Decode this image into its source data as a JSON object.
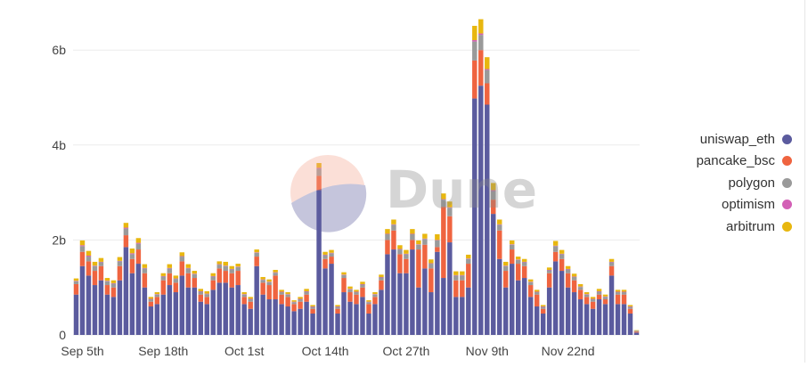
{
  "colors": {
    "uniswap_eth": "#5b5b9e",
    "pancake_bsc": "#ef6440",
    "polygon": "#9a9a9a",
    "optimism": "#d360b6",
    "arbitrum": "#e8b70f",
    "grid": "#ececec",
    "axis_text": "#444444"
  },
  "watermark": {
    "text": "Dune",
    "icon": "dune-logo-icon"
  },
  "chart_data": {
    "type": "bar",
    "stacked": true,
    "xlabel": "",
    "ylabel": "",
    "ylim": [
      0,
      6.8
    ],
    "y_ticks": [
      {
        "value": 0,
        "label": "0"
      },
      {
        "value": 2,
        "label": "2b"
      },
      {
        "value": 4,
        "label": "4b"
      },
      {
        "value": 6,
        "label": "6b"
      }
    ],
    "x_ticks": [
      {
        "index": 1,
        "label": "Sep 5th"
      },
      {
        "index": 14,
        "label": "Sep 18th"
      },
      {
        "index": 27,
        "label": "Oct 1st"
      },
      {
        "index": 40,
        "label": "Oct 14th"
      },
      {
        "index": 53,
        "label": "Oct 27th"
      },
      {
        "index": 66,
        "label": "Nov 9th"
      },
      {
        "index": 79,
        "label": "Nov 22nd"
      }
    ],
    "legend_position": "right",
    "categories": [
      "Sep 4",
      "Sep 5",
      "Sep 6",
      "Sep 7",
      "Sep 8",
      "Sep 9",
      "Sep 10",
      "Sep 11",
      "Sep 12",
      "Sep 13",
      "Sep 14",
      "Sep 15",
      "Sep 16",
      "Sep 17",
      "Sep 18",
      "Sep 19",
      "Sep 20",
      "Sep 21",
      "Sep 22",
      "Sep 23",
      "Sep 24",
      "Sep 25",
      "Sep 26",
      "Sep 27",
      "Sep 28",
      "Sep 29",
      "Sep 30",
      "Oct 1",
      "Oct 2",
      "Oct 3",
      "Oct 4",
      "Oct 5",
      "Oct 6",
      "Oct 7",
      "Oct 8",
      "Oct 9",
      "Oct 10",
      "Oct 11",
      "Oct 12",
      "Oct 13",
      "Oct 14",
      "Oct 15",
      "Oct 16",
      "Oct 17",
      "Oct 18",
      "Oct 19",
      "Oct 20",
      "Oct 21",
      "Oct 22",
      "Oct 23",
      "Oct 24",
      "Oct 25",
      "Oct 26",
      "Oct 27",
      "Oct 28",
      "Oct 29",
      "Oct 30",
      "Oct 31",
      "Nov 1",
      "Nov 2",
      "Nov 3",
      "Nov 4",
      "Nov 5",
      "Nov 6",
      "Nov 7",
      "Nov 8",
      "Nov 9",
      "Nov 10",
      "Nov 11",
      "Nov 12",
      "Nov 13",
      "Nov 14",
      "Nov 15",
      "Nov 16",
      "Nov 17",
      "Nov 18",
      "Nov 19",
      "Nov 20",
      "Nov 21",
      "Nov 22",
      "Nov 23",
      "Nov 24",
      "Nov 25",
      "Nov 26",
      "Nov 27",
      "Nov 28",
      "Nov 29",
      "Nov 30",
      "Dec 1",
      "Dec 2",
      "Dec 3"
    ],
    "series": [
      {
        "name": "uniswap_eth",
        "values": [
          0.85,
          1.45,
          1.25,
          1.05,
          1.15,
          0.85,
          0.8,
          1.15,
          1.85,
          1.3,
          1.5,
          1.0,
          0.6,
          0.65,
          0.85,
          1.05,
          0.9,
          1.25,
          1.0,
          1.0,
          0.7,
          0.65,
          0.95,
          1.1,
          1.1,
          1.0,
          1.05,
          0.65,
          0.55,
          1.45,
          0.85,
          0.75,
          0.75,
          0.65,
          0.6,
          0.5,
          0.55,
          0.7,
          0.45,
          3.05,
          1.4,
          1.5,
          0.45,
          0.9,
          0.7,
          0.65,
          0.8,
          0.45,
          0.65,
          0.95,
          1.7,
          1.8,
          1.3,
          1.3,
          1.8,
          1.0,
          1.4,
          0.9,
          1.75,
          1.2,
          1.95,
          0.8,
          0.8,
          1.0,
          4.98,
          5.25,
          4.85,
          2.55,
          1.6,
          1.0,
          1.5,
          1.15,
          1.2,
          0.8,
          0.6,
          0.45,
          1.0,
          1.55,
          1.35,
          1.0,
          0.9,
          0.75,
          0.65,
          0.55,
          0.75,
          0.65,
          1.25,
          0.65,
          0.65,
          0.45,
          0.05
        ]
      },
      {
        "name": "pancake_bsc",
        "values": [
          0.22,
          0.3,
          0.3,
          0.3,
          0.3,
          0.2,
          0.2,
          0.3,
          0.25,
          0.3,
          0.3,
          0.3,
          0.1,
          0.15,
          0.3,
          0.25,
          0.2,
          0.3,
          0.3,
          0.2,
          0.15,
          0.15,
          0.2,
          0.3,
          0.25,
          0.3,
          0.3,
          0.15,
          0.15,
          0.2,
          0.25,
          0.3,
          0.5,
          0.2,
          0.2,
          0.15,
          0.15,
          0.15,
          0.1,
          0.3,
          0.2,
          0.15,
          0.1,
          0.3,
          0.2,
          0.2,
          0.2,
          0.2,
          0.15,
          0.2,
          0.3,
          0.4,
          0.4,
          0.3,
          0.2,
          0.8,
          0.5,
          0.5,
          0.1,
          1.5,
          0.55,
          0.35,
          0.35,
          0.5,
          0.8,
          0.75,
          0.45,
          0.3,
          0.6,
          0.35,
          0.3,
          0.35,
          0.25,
          0.25,
          0.25,
          0.1,
          0.3,
          0.2,
          0.25,
          0.3,
          0.25,
          0.2,
          0.15,
          0.15,
          0.1,
          0.1,
          0.2,
          0.2,
          0.2,
          0.1,
          0.02
        ]
      },
      {
        "name": "polygon",
        "values": [
          0.06,
          0.12,
          0.1,
          0.1,
          0.08,
          0.08,
          0.08,
          0.1,
          0.14,
          0.1,
          0.12,
          0.1,
          0.05,
          0.05,
          0.08,
          0.1,
          0.08,
          0.1,
          0.1,
          0.08,
          0.06,
          0.06,
          0.08,
          0.08,
          0.1,
          0.08,
          0.08,
          0.05,
          0.05,
          0.08,
          0.06,
          0.06,
          0.06,
          0.05,
          0.05,
          0.04,
          0.05,
          0.06,
          0.04,
          0.15,
          0.08,
          0.07,
          0.04,
          0.06,
          0.06,
          0.05,
          0.06,
          0.04,
          0.05,
          0.06,
          0.12,
          0.12,
          0.1,
          0.1,
          0.12,
          0.1,
          0.12,
          0.1,
          0.14,
          0.15,
          0.18,
          0.1,
          0.1,
          0.1,
          0.4,
          0.32,
          0.28,
          0.18,
          0.12,
          0.1,
          0.1,
          0.08,
          0.08,
          0.06,
          0.05,
          0.04,
          0.06,
          0.12,
          0.1,
          0.08,
          0.07,
          0.06,
          0.05,
          0.05,
          0.06,
          0.05,
          0.08,
          0.05,
          0.05,
          0.04,
          0.02
        ]
      },
      {
        "name": "optimism",
        "values": [
          0.01,
          0.02,
          0.02,
          0.01,
          0.01,
          0.01,
          0.01,
          0.01,
          0.02,
          0.02,
          0.02,
          0.01,
          0.01,
          0.01,
          0.01,
          0.01,
          0.01,
          0.01,
          0.01,
          0.01,
          0.01,
          0.01,
          0.01,
          0.01,
          0.01,
          0.01,
          0.01,
          0.01,
          0.01,
          0.01,
          0.01,
          0.01,
          0.01,
          0.01,
          0.01,
          0.01,
          0.01,
          0.01,
          0.01,
          0.02,
          0.01,
          0.01,
          0.01,
          0.01,
          0.01,
          0.01,
          0.01,
          0.01,
          0.01,
          0.01,
          0.01,
          0.01,
          0.01,
          0.01,
          0.01,
          0.01,
          0.01,
          0.01,
          0.01,
          0.01,
          0.01,
          0.01,
          0.01,
          0.01,
          0.03,
          0.03,
          0.02,
          0.02,
          0.01,
          0.01,
          0.01,
          0.01,
          0.01,
          0.01,
          0.01,
          0.01,
          0.01,
          0.01,
          0.01,
          0.01,
          0.01,
          0.01,
          0.01,
          0.01,
          0.01,
          0.01,
          0.01,
          0.01,
          0.01,
          0.01,
          0.0
        ]
      },
      {
        "name": "arbitrum",
        "values": [
          0.05,
          0.1,
          0.1,
          0.08,
          0.08,
          0.06,
          0.06,
          0.08,
          0.1,
          0.1,
          0.1,
          0.08,
          0.04,
          0.04,
          0.06,
          0.08,
          0.06,
          0.08,
          0.08,
          0.06,
          0.05,
          0.05,
          0.06,
          0.06,
          0.08,
          0.06,
          0.06,
          0.04,
          0.04,
          0.06,
          0.05,
          0.05,
          0.05,
          0.04,
          0.04,
          0.03,
          0.04,
          0.05,
          0.03,
          0.1,
          0.06,
          0.06,
          0.03,
          0.05,
          0.05,
          0.04,
          0.05,
          0.03,
          0.04,
          0.05,
          0.1,
          0.1,
          0.08,
          0.08,
          0.1,
          0.08,
          0.1,
          0.08,
          0.12,
          0.12,
          0.12,
          0.08,
          0.08,
          0.08,
          0.3,
          0.3,
          0.25,
          0.15,
          0.1,
          0.08,
          0.08,
          0.06,
          0.06,
          0.05,
          0.04,
          0.03,
          0.05,
          0.1,
          0.08,
          0.06,
          0.06,
          0.05,
          0.04,
          0.04,
          0.05,
          0.04,
          0.06,
          0.04,
          0.04,
          0.03,
          0.01
        ]
      }
    ]
  }
}
